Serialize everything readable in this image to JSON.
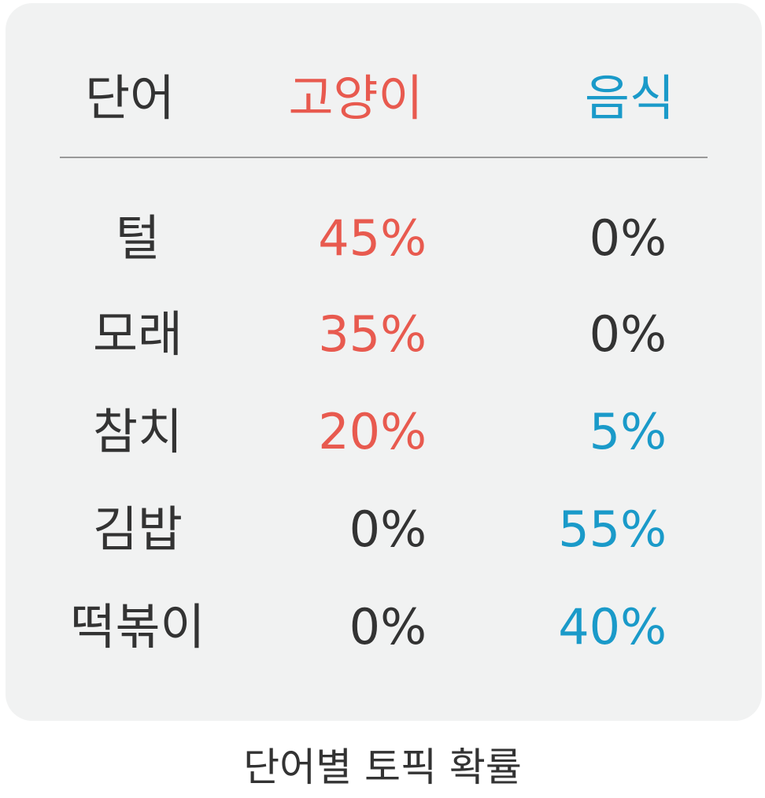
{
  "header": {
    "word": "단어",
    "cat": "고양이",
    "food": "음식"
  },
  "rows": [
    {
      "word": "털",
      "cat": "45%",
      "food": "0%",
      "cat_color": "#e85a4f",
      "food_color": "#333333"
    },
    {
      "word": "모래",
      "cat": "35%",
      "food": "0%",
      "cat_color": "#e85a4f",
      "food_color": "#333333"
    },
    {
      "word": "참치",
      "cat": "20%",
      "food": "5%",
      "cat_color": "#e85a4f",
      "food_color": "#1a9ac9"
    },
    {
      "word": "김밥",
      "cat": "0%",
      "food": "55%",
      "cat_color": "#333333",
      "food_color": "#1a9ac9"
    },
    {
      "word": "떡볶이",
      "cat": "0%",
      "food": "40%",
      "cat_color": "#333333",
      "food_color": "#1a9ac9"
    }
  ],
  "colors": {
    "cat": "#e85a4f",
    "food": "#1a9ac9",
    "text": "#333333",
    "card_bg": "#f1f2f2"
  },
  "caption": "단어별 토픽 확률"
}
